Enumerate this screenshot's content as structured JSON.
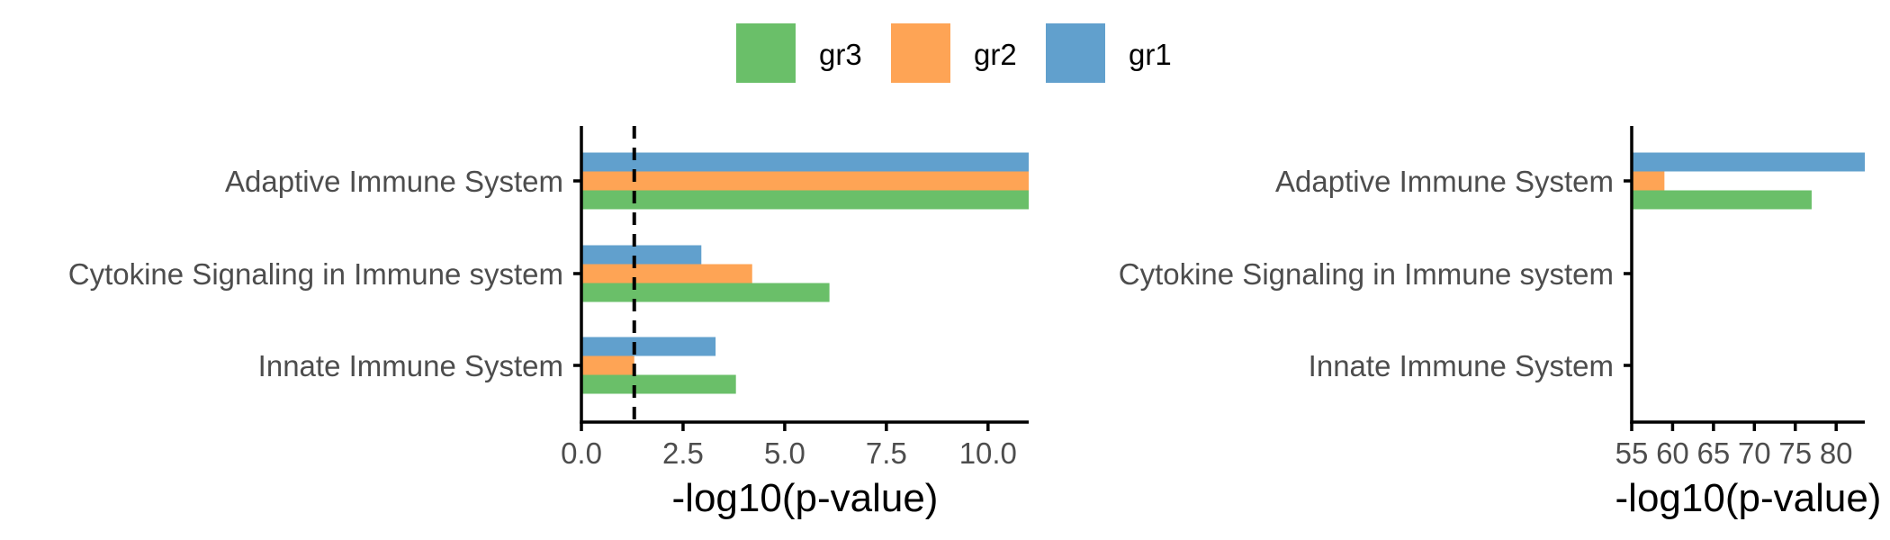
{
  "chart_data": {
    "type": "bar",
    "orientation": "horizontal",
    "legend": {
      "placement": "top",
      "entries": [
        {
          "name": "gr3",
          "color": "#6abf69"
        },
        {
          "name": "gr2",
          "color": "#fea455"
        },
        {
          "name": "gr1",
          "color": "#61a0cd"
        }
      ]
    },
    "categories": [
      "Adaptive Immune System",
      "Cytokine Signaling in Immune system",
      "Innate Immune System"
    ],
    "series": [
      {
        "name": "gr1",
        "color": "#61a0cd",
        "values": [
          83.5,
          2.95,
          3.3
        ]
      },
      {
        "name": "gr2",
        "color": "#fea455",
        "values": [
          59,
          4.2,
          1.3
        ]
      },
      {
        "name": "gr3",
        "color": "#6abf69",
        "values": [
          77,
          6.1,
          3.8
        ]
      }
    ],
    "threshold": 1.3,
    "panels": [
      {
        "xlim": [
          0,
          11
        ],
        "xticks": [
          0,
          2.5,
          5,
          7.5,
          10
        ],
        "xtick_labels": [
          "0.0",
          "2.5",
          "5.0",
          "7.5",
          "10.0"
        ],
        "xlabel": "-log10(p-value)",
        "threshold_line": true
      },
      {
        "xlim": [
          55,
          83.5
        ],
        "xticks": [
          55,
          60,
          65,
          70,
          75,
          80
        ],
        "xtick_labels": [
          "55",
          "60",
          "65",
          "70",
          "75",
          "80"
        ],
        "xlabel": "-log10(p-value)",
        "threshold_line": false
      }
    ]
  }
}
